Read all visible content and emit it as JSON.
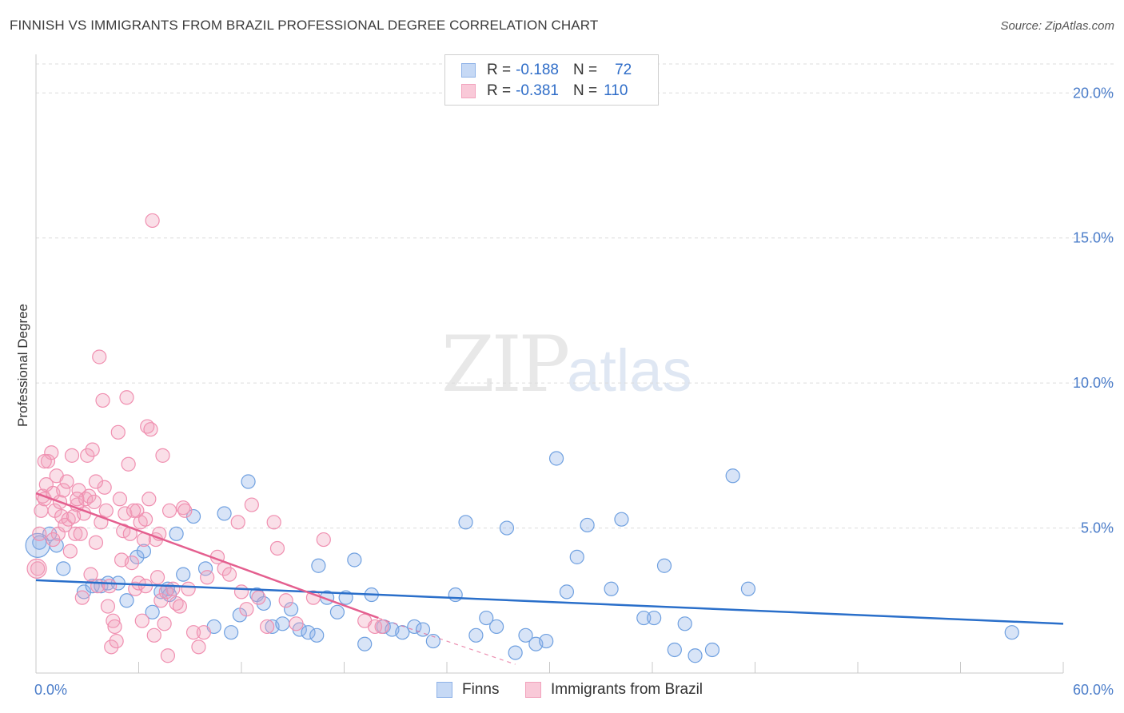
{
  "title": "FINNISH VS IMMIGRANTS FROM BRAZIL PROFESSIONAL DEGREE CORRELATION CHART",
  "source": "Source: ZipAtlas.com",
  "watermark": {
    "zip": "ZIP",
    "atlas": "atlas"
  },
  "legend_top": {
    "rows": [
      {
        "r_label": "R =",
        "r_value": "-0.188",
        "n_label": "N =",
        "n_value": "72",
        "color": "#8fb3e8"
      },
      {
        "r_label": "R =",
        "r_value": "-0.381",
        "n_label": "N =",
        "n_value": "110",
        "color": "#f2a3bd"
      }
    ]
  },
  "legend_bottom": [
    {
      "label": "Finns",
      "color": "#8fb3e8"
    },
    {
      "label": "Immigrants from Brazil",
      "color": "#f2a3bd"
    }
  ],
  "chart_data": {
    "type": "scatter",
    "xlabel": "",
    "ylabel": "Professional Degree",
    "xlim": [
      0,
      60
    ],
    "ylim": [
      0,
      21
    ],
    "x_tick_labels": [
      "0.0%",
      "60.0%"
    ],
    "y_ticks": [
      5,
      10,
      15,
      20
    ],
    "y_tick_labels": [
      "5.0%",
      "10.0%",
      "15.0%",
      "20.0%"
    ],
    "grid": true,
    "series": [
      {
        "name": "Finns",
        "color": "#6fa0e0",
        "trend": {
          "x": [
            0,
            60
          ],
          "y": [
            3.2,
            1.7
          ],
          "color": "#2a6fca"
        },
        "points": [
          [
            0.2,
            4.5
          ],
          [
            0.8,
            4.8
          ],
          [
            1.2,
            4.4
          ],
          [
            1.6,
            3.6
          ],
          [
            2.8,
            2.8
          ],
          [
            3.3,
            3.0
          ],
          [
            3.8,
            3.0
          ],
          [
            4.2,
            3.1
          ],
          [
            4.8,
            3.1
          ],
          [
            5.3,
            2.5
          ],
          [
            5.9,
            4.0
          ],
          [
            6.3,
            4.2
          ],
          [
            6.8,
            2.1
          ],
          [
            7.3,
            2.8
          ],
          [
            7.8,
            2.7
          ],
          [
            8.2,
            4.8
          ],
          [
            8.6,
            3.4
          ],
          [
            9.2,
            5.4
          ],
          [
            9.9,
            3.6
          ],
          [
            10.4,
            1.6
          ],
          [
            11.0,
            5.5
          ],
          [
            11.4,
            1.4
          ],
          [
            11.9,
            2.0
          ],
          [
            12.4,
            6.6
          ],
          [
            12.9,
            2.7
          ],
          [
            13.3,
            2.4
          ],
          [
            13.8,
            1.6
          ],
          [
            14.4,
            1.7
          ],
          [
            14.9,
            2.2
          ],
          [
            15.4,
            1.5
          ],
          [
            15.9,
            1.4
          ],
          [
            16.5,
            3.7
          ],
          [
            17.0,
            2.6
          ],
          [
            17.6,
            2.1
          ],
          [
            18.1,
            2.6
          ],
          [
            18.6,
            3.9
          ],
          [
            19.2,
            1.0
          ],
          [
            19.6,
            2.7
          ],
          [
            20.3,
            1.6
          ],
          [
            20.8,
            1.5
          ],
          [
            21.4,
            1.4
          ],
          [
            22.1,
            1.6
          ],
          [
            22.6,
            1.5
          ],
          [
            23.2,
            1.1
          ],
          [
            24.5,
            2.7
          ],
          [
            25.1,
            5.2
          ],
          [
            25.7,
            1.3
          ],
          [
            26.3,
            1.9
          ],
          [
            26.9,
            1.6
          ],
          [
            27.5,
            5.0
          ],
          [
            28.0,
            0.7
          ],
          [
            28.6,
            1.3
          ],
          [
            29.2,
            1.0
          ],
          [
            29.8,
            1.1
          ],
          [
            30.4,
            7.4
          ],
          [
            31.0,
            2.8
          ],
          [
            31.6,
            4.0
          ],
          [
            32.2,
            5.1
          ],
          [
            33.6,
            2.9
          ],
          [
            34.2,
            5.3
          ],
          [
            35.5,
            1.9
          ],
          [
            36.1,
            1.9
          ],
          [
            36.7,
            3.7
          ],
          [
            37.3,
            0.8
          ],
          [
            37.9,
            1.7
          ],
          [
            38.5,
            0.6
          ],
          [
            39.5,
            0.8
          ],
          [
            40.7,
            6.8
          ],
          [
            41.6,
            2.9
          ],
          [
            57.0,
            1.4
          ],
          [
            16.4,
            1.3
          ],
          [
            7.7,
            2.9
          ]
        ]
      },
      {
        "name": "Immigrants from Brazil",
        "color": "#f08fb0",
        "trend": {
          "x": [
            0,
            20
          ],
          "y": [
            6.2,
            1.9
          ],
          "color": "#e45f8f",
          "dashed_extension": {
            "x": [
              20,
              28
            ],
            "y": [
              1.9,
              0.3
            ]
          }
        },
        "points": [
          [
            0.1,
            3.6
          ],
          [
            0.2,
            4.8
          ],
          [
            0.3,
            5.6
          ],
          [
            0.4,
            6.1
          ],
          [
            0.5,
            6.0
          ],
          [
            0.6,
            6.5
          ],
          [
            0.7,
            7.3
          ],
          [
            0.9,
            7.6
          ],
          [
            1.0,
            6.2
          ],
          [
            1.1,
            5.6
          ],
          [
            1.2,
            6.8
          ],
          [
            1.3,
            4.8
          ],
          [
            1.4,
            5.9
          ],
          [
            1.5,
            5.4
          ],
          [
            1.6,
            6.3
          ],
          [
            1.7,
            5.1
          ],
          [
            1.8,
            6.6
          ],
          [
            1.9,
            5.3
          ],
          [
            2.0,
            4.2
          ],
          [
            2.1,
            7.5
          ],
          [
            2.2,
            5.4
          ],
          [
            2.3,
            4.8
          ],
          [
            2.4,
            5.8
          ],
          [
            2.5,
            6.3
          ],
          [
            2.6,
            4.8
          ],
          [
            2.7,
            2.6
          ],
          [
            2.8,
            5.5
          ],
          [
            2.9,
            6.0
          ],
          [
            3.0,
            7.5
          ],
          [
            3.1,
            6.1
          ],
          [
            3.2,
            3.4
          ],
          [
            3.3,
            7.7
          ],
          [
            3.4,
            5.9
          ],
          [
            3.5,
            4.5
          ],
          [
            3.6,
            3.0
          ],
          [
            3.7,
            10.9
          ],
          [
            3.8,
            5.2
          ],
          [
            3.9,
            9.4
          ],
          [
            4.0,
            6.4
          ],
          [
            4.1,
            5.6
          ],
          [
            4.2,
            2.3
          ],
          [
            4.3,
            3.0
          ],
          [
            4.4,
            0.9
          ],
          [
            4.5,
            1.8
          ],
          [
            4.6,
            1.6
          ],
          [
            4.8,
            8.3
          ],
          [
            4.9,
            6.0
          ],
          [
            5.0,
            3.9
          ],
          [
            5.1,
            4.9
          ],
          [
            5.2,
            5.5
          ],
          [
            5.3,
            9.5
          ],
          [
            5.4,
            7.2
          ],
          [
            5.5,
            4.8
          ],
          [
            5.6,
            3.8
          ],
          [
            5.8,
            2.9
          ],
          [
            5.9,
            5.6
          ],
          [
            6.0,
            3.1
          ],
          [
            6.1,
            5.2
          ],
          [
            6.2,
            1.8
          ],
          [
            6.3,
            4.6
          ],
          [
            6.4,
            3.0
          ],
          [
            6.5,
            8.5
          ],
          [
            6.6,
            6.0
          ],
          [
            6.7,
            8.4
          ],
          [
            6.8,
            15.6
          ],
          [
            6.9,
            1.3
          ],
          [
            7.0,
            4.6
          ],
          [
            7.1,
            3.3
          ],
          [
            7.2,
            4.8
          ],
          [
            7.3,
            2.5
          ],
          [
            7.4,
            7.5
          ],
          [
            7.5,
            1.7
          ],
          [
            7.6,
            2.8
          ],
          [
            7.7,
            0.6
          ],
          [
            7.8,
            5.6
          ],
          [
            8.0,
            2.9
          ],
          [
            8.2,
            2.4
          ],
          [
            8.4,
            2.3
          ],
          [
            8.6,
            5.7
          ],
          [
            8.9,
            2.9
          ],
          [
            9.2,
            1.4
          ],
          [
            9.5,
            0.9
          ],
          [
            10.0,
            3.3
          ],
          [
            10.6,
            4.0
          ],
          [
            11.0,
            3.6
          ],
          [
            11.3,
            3.4
          ],
          [
            11.8,
            5.2
          ],
          [
            12.0,
            2.8
          ],
          [
            12.3,
            2.2
          ],
          [
            12.6,
            5.8
          ],
          [
            13.0,
            2.6
          ],
          [
            13.5,
            1.6
          ],
          [
            14.1,
            4.3
          ],
          [
            14.6,
            2.5
          ],
          [
            15.2,
            1.7
          ],
          [
            16.2,
            2.6
          ],
          [
            16.8,
            4.6
          ],
          [
            19.2,
            1.8
          ],
          [
            19.8,
            1.6
          ],
          [
            20.2,
            1.6
          ],
          [
            4.7,
            1.1
          ],
          [
            5.7,
            5.6
          ],
          [
            3.5,
            6.6
          ],
          [
            2.4,
            6.0
          ],
          [
            1.0,
            4.6
          ],
          [
            0.5,
            7.3
          ],
          [
            8.7,
            5.6
          ],
          [
            9.8,
            1.4
          ],
          [
            13.9,
            5.2
          ],
          [
            6.4,
            5.3
          ]
        ]
      }
    ]
  }
}
